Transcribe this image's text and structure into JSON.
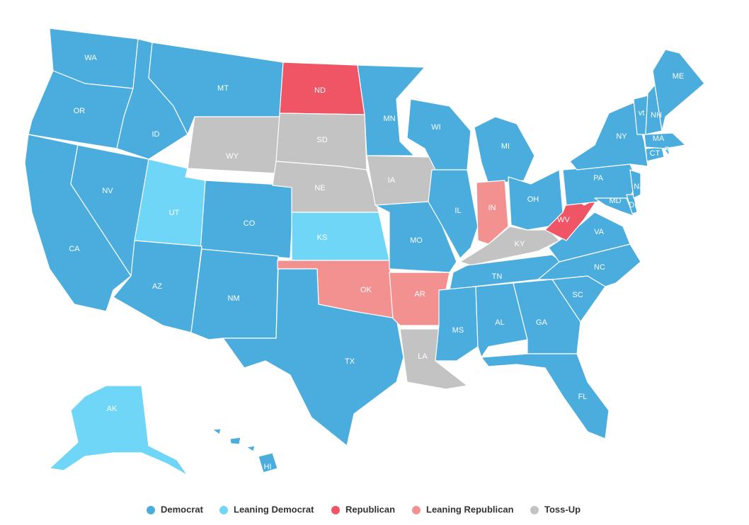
{
  "legend": [
    {
      "name": "Democrat",
      "color": "#4aaddd"
    },
    {
      "name": "Leaning Democrat",
      "color": "#6fd6f7"
    },
    {
      "name": "Republican",
      "color": "#ef5565"
    },
    {
      "name": "Leaning Republican",
      "color": "#f39090"
    },
    {
      "name": "Toss-Up",
      "color": "#c3c3c3"
    }
  ],
  "states": [
    {
      "label": "WA",
      "status": 0
    },
    {
      "label": "OR",
      "status": 0
    },
    {
      "label": "CA",
      "status": 0
    },
    {
      "label": "NV",
      "status": 0
    },
    {
      "label": "ID",
      "status": 0
    },
    {
      "label": "MT",
      "status": 0
    },
    {
      "label": "WY",
      "status": 4
    },
    {
      "label": "UT",
      "status": 1
    },
    {
      "label": "CO",
      "status": 0
    },
    {
      "label": "AZ",
      "status": 0
    },
    {
      "label": "NM",
      "status": 0
    },
    {
      "label": "ND",
      "status": 2
    },
    {
      "label": "SD",
      "status": 4
    },
    {
      "label": "NE",
      "status": 4
    },
    {
      "label": "KS",
      "status": 1
    },
    {
      "label": "OK",
      "status": 3
    },
    {
      "label": "TX",
      "status": 0
    },
    {
      "label": "MN",
      "status": 0
    },
    {
      "label": "IA",
      "status": 4
    },
    {
      "label": "MO",
      "status": 0
    },
    {
      "label": "AR",
      "status": 3
    },
    {
      "label": "LA",
      "status": 4
    },
    {
      "label": "WI",
      "status": 0
    },
    {
      "label": "IL",
      "status": 0
    },
    {
      "label": "MI",
      "status": 0
    },
    {
      "label": "IN",
      "status": 3
    },
    {
      "label": "OH",
      "status": 0
    },
    {
      "label": "KY",
      "status": 4
    },
    {
      "label": "TN",
      "status": 0
    },
    {
      "label": "MS",
      "status": 0
    },
    {
      "label": "AL",
      "status": 0
    },
    {
      "label": "GA",
      "status": 0
    },
    {
      "label": "FL",
      "status": 0
    },
    {
      "label": "SC",
      "status": 0
    },
    {
      "label": "NC",
      "status": 0
    },
    {
      "label": "VA",
      "status": 0
    },
    {
      "label": "WV",
      "status": 2
    },
    {
      "label": "PA",
      "status": 0
    },
    {
      "label": "NY",
      "status": 0
    },
    {
      "label": "MD",
      "status": 0
    },
    {
      "label": "DE",
      "status": 0
    },
    {
      "label": "NJ",
      "status": 0
    },
    {
      "label": "CT",
      "status": 0
    },
    {
      "label": "RI",
      "status": 0
    },
    {
      "label": "MA",
      "status": 0
    },
    {
      "label": "vt",
      "status": 0
    },
    {
      "label": "NH",
      "status": 0
    },
    {
      "label": "ME",
      "status": 0
    },
    {
      "label": "AK",
      "status": 1
    },
    {
      "label": "HI",
      "status": 0
    }
  ]
}
